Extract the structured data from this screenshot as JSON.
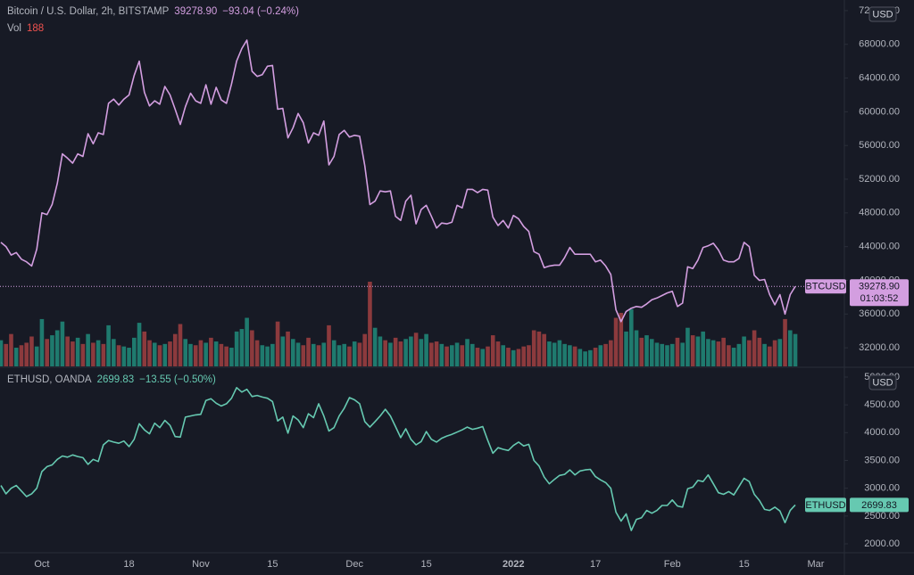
{
  "chart_data": [
    {
      "type": "line",
      "title": "Bitcoin / U.S. Dollar, 2h, BITSTAMP",
      "symbol": "BTCUSD",
      "currency": "USD",
      "last_price": {
        "value": 39278.9,
        "label": "39278.90"
      },
      "change": "−93.04 (−0.24%)",
      "countdown": "01:03:52",
      "ylim": [
        29790,
        73260
      ],
      "yticks": [
        {
          "value": 32000,
          "label": "32000.00"
        },
        {
          "value": 36000,
          "label": "36000.00"
        },
        {
          "value": 40000,
          "label": "40000.00"
        },
        {
          "value": 44000,
          "label": "44000.00"
        },
        {
          "value": 48000,
          "label": "48000.00"
        },
        {
          "value": 52000,
          "label": "52000.00"
        },
        {
          "value": 56000,
          "label": "56000.00"
        },
        {
          "value": 60000,
          "label": "60000.00"
        },
        {
          "value": 64000,
          "label": "64000.00"
        },
        {
          "value": 68000,
          "label": "68000.00"
        },
        {
          "value": 72000,
          "label": "72000.00"
        }
      ],
      "grid": false,
      "series": [
        {
          "name": "BTCUSD",
          "color": "#d39ee0",
          "values": [
            44500,
            44000,
            43000,
            43300,
            42500,
            42200,
            41700,
            43700,
            48000,
            47800,
            49000,
            51500,
            55000,
            54500,
            53900,
            55000,
            54700,
            57400,
            56200,
            57500,
            57300,
            61000,
            61500,
            60800,
            61500,
            62000,
            64300,
            66000,
            62300,
            60700,
            61300,
            60900,
            63000,
            62000,
            60300,
            58500,
            60600,
            62200,
            61300,
            61000,
            63200,
            60900,
            62900,
            61400,
            61000,
            63300,
            66000,
            67500,
            68500,
            64800,
            64200,
            64400,
            65400,
            65500,
            60300,
            60400,
            56900,
            58100,
            59800,
            58700,
            56300,
            57500,
            57200,
            58900,
            53700,
            54700,
            57300,
            57800,
            57000,
            57200,
            57100,
            53600,
            49000,
            49400,
            50600,
            50500,
            50600,
            47600,
            47100,
            49400,
            50100,
            46700,
            48400,
            48900,
            47600,
            46200,
            46800,
            46700,
            46900,
            48900,
            48600,
            50800,
            50800,
            50400,
            50800,
            50700,
            47500,
            46500,
            47100,
            46200,
            47700,
            47300,
            46400,
            45800,
            43400,
            43100,
            41500,
            41700,
            41800,
            41800,
            42700,
            43900,
            43100,
            43100,
            43100,
            43100,
            42200,
            42400,
            41700,
            40700,
            36500,
            35100,
            36300,
            36700,
            36900,
            36800,
            37200,
            37700,
            37900,
            38200,
            38500,
            38700,
            36900,
            37300,
            41600,
            41400,
            42400,
            43900,
            44100,
            44400,
            43600,
            42400,
            42200,
            42200,
            42600,
            44500,
            44000,
            40600,
            40000,
            40100,
            38300,
            37100,
            38300,
            36000,
            38300,
            39278.9,
            null,
            null,
            null,
            null
          ]
        }
      ],
      "volume": {
        "name": "Vol",
        "last": 188,
        "up_color": "#1f7a6e",
        "down_color": "#8c3a3d",
        "last_color": "#f0524f",
        "values": [
          2100,
          1800,
          2600,
          1500,
          1700,
          1900,
          2400,
          1600,
          3800,
          2200,
          2500,
          2900,
          3600,
          2400,
          2000,
          2300,
          1800,
          2600,
          1900,
          2100,
          1800,
          3300,
          2200,
          1700,
          1600,
          1500,
          2300,
          3500,
          2800,
          2100,
          1900,
          1700,
          1800,
          2000,
          2600,
          3400,
          2200,
          1800,
          1700,
          2100,
          1900,
          2300,
          2000,
          1800,
          1600,
          1500,
          2800,
          3000,
          3900,
          2900,
          2100,
          1700,
          1600,
          1800,
          3600,
          2400,
          2800,
          2200,
          1900,
          1700,
          2300,
          1800,
          1700,
          1900,
          3300,
          2100,
          1700,
          1800,
          1600,
          2000,
          1900,
          2600,
          6800,
          3100,
          2400,
          2100,
          1900,
          2300,
          2000,
          2200,
          2400,
          2700,
          2200,
          2600,
          1900,
          2000,
          1800,
          1600,
          1700,
          1900,
          1700,
          2200,
          1800,
          1500,
          1400,
          1600,
          2500,
          2000,
          1700,
          1500,
          1300,
          1400,
          1600,
          1700,
          2900,
          2800,
          2600,
          2000,
          1900,
          2100,
          1800,
          1700,
          1600,
          1400,
          1200,
          1300,
          1500,
          1700,
          1800,
          2100,
          3900,
          4300,
          2800,
          4600,
          2900,
          2300,
          2500,
          2200,
          1900,
          1800,
          1700,
          1800,
          2300,
          1900,
          3100,
          2500,
          2400,
          2800,
          2200,
          2100,
          2000,
          2300,
          1700,
          1500,
          1800,
          2400,
          2100,
          2900,
          2300,
          1800,
          1600,
          2100,
          2200,
          3800,
          2900,
          2600,
          null,
          null,
          null,
          null
        ]
      }
    },
    {
      "type": "line",
      "title": "ETHUSD, OANDA",
      "symbol": "ETHUSD",
      "currency": "USD",
      "last_price": {
        "value": 2699.83,
        "label": "2699.83"
      },
      "change": "−13.55 (−0.50%)",
      "ylim": [
        1840,
        5160
      ],
      "yticks": [
        {
          "value": 2000,
          "label": "2000.00"
        },
        {
          "value": 2500,
          "label": "2500.00"
        },
        {
          "value": 3000,
          "label": "3000.00"
        },
        {
          "value": 3500,
          "label": "3500.00"
        },
        {
          "value": 4000,
          "label": "4000.00"
        },
        {
          "value": 4500,
          "label": "4500.00"
        },
        {
          "value": 5000,
          "label": "5000.00"
        }
      ],
      "grid": false,
      "categories": [
        null,
        null,
        null,
        null,
        null,
        null,
        null,
        null,
        "Oct",
        null,
        null,
        null,
        null,
        null,
        null,
        null,
        null,
        null,
        null,
        null,
        null,
        null,
        null,
        null,
        null,
        "18",
        null,
        null,
        null,
        null,
        null,
        null,
        null,
        null,
        null,
        null,
        null,
        null,
        null,
        "Nov",
        null,
        null,
        null,
        null,
        null,
        null,
        null,
        null,
        null,
        null,
        null,
        null,
        null,
        "15",
        null,
        null,
        null,
        null,
        null,
        null,
        null,
        null,
        null,
        null,
        null,
        null,
        null,
        null,
        null,
        "Dec",
        null,
        null,
        null,
        null,
        null,
        null,
        null,
        null,
        null,
        null,
        null,
        null,
        null,
        "15",
        null,
        null,
        null,
        null,
        null,
        null,
        null,
        null,
        null,
        null,
        null,
        null,
        null,
        null,
        null,
        null,
        "2022",
        null,
        null,
        null,
        null,
        null,
        null,
        null,
        null,
        null,
        null,
        null,
        null,
        null,
        null,
        null,
        "17",
        null,
        null,
        null,
        null,
        null,
        null,
        null,
        null,
        null,
        null,
        null,
        null,
        null,
        null,
        "Feb",
        null,
        null,
        null,
        null,
        null,
        null,
        null,
        null,
        null,
        null,
        null,
        null,
        null,
        "15",
        null,
        null,
        null,
        null,
        null,
        null,
        null,
        null,
        null,
        null,
        null,
        null,
        null,
        "Mar"
      ],
      "series": [
        {
          "name": "ETHUSD",
          "color": "#66c9b1",
          "values": [
            3050,
            2900,
            3000,
            3050,
            2950,
            2850,
            2900,
            3000,
            3300,
            3390,
            3420,
            3520,
            3580,
            3560,
            3600,
            3570,
            3550,
            3430,
            3520,
            3480,
            3780,
            3860,
            3830,
            3810,
            3850,
            3750,
            3880,
            4160,
            4050,
            3980,
            4170,
            4090,
            4220,
            4130,
            3930,
            3920,
            4280,
            4300,
            4320,
            4330,
            4580,
            4610,
            4530,
            4480,
            4520,
            4620,
            4810,
            4730,
            4780,
            4650,
            4670,
            4640,
            4620,
            4560,
            4210,
            4280,
            3990,
            4300,
            4230,
            4090,
            4340,
            4270,
            4520,
            4300,
            4030,
            4090,
            4300,
            4440,
            4630,
            4590,
            4520,
            4200,
            4100,
            4200,
            4300,
            4420,
            4300,
            4110,
            3910,
            4070,
            3880,
            3780,
            3840,
            4020,
            3880,
            3830,
            3900,
            3940,
            3970,
            4010,
            4050,
            4100,
            4060,
            4080,
            4110,
            3860,
            3630,
            3730,
            3700,
            3680,
            3770,
            3830,
            3760,
            3790,
            3500,
            3400,
            3200,
            3080,
            3160,
            3230,
            3250,
            3330,
            3240,
            3310,
            3330,
            3340,
            3210,
            3150,
            3100,
            3000,
            2570,
            2410,
            2540,
            2240,
            2440,
            2470,
            2600,
            2550,
            2600,
            2690,
            2690,
            2790,
            2680,
            2660,
            2990,
            3020,
            3140,
            3120,
            3240,
            3080,
            2920,
            2890,
            2940,
            2880,
            3030,
            3180,
            3120,
            2890,
            2780,
            2620,
            2600,
            2660,
            2590,
            2380,
            2600,
            2699.83,
            null,
            null,
            null,
            null
          ]
        }
      ]
    }
  ]
}
